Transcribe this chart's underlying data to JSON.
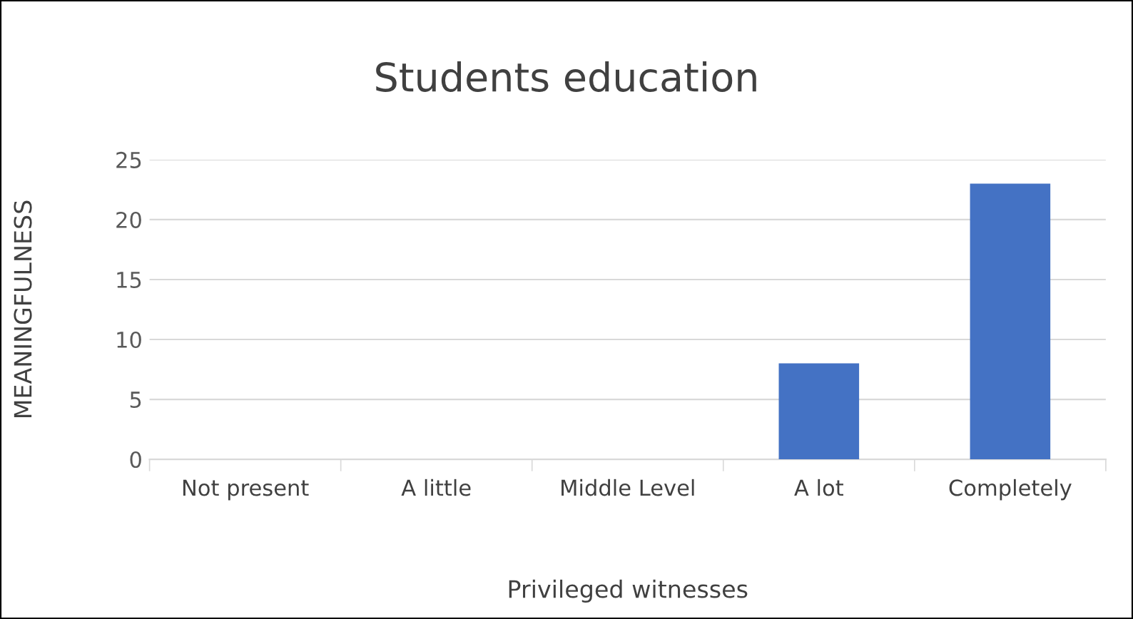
{
  "chart_data": {
    "type": "bar",
    "title": "Students education",
    "xlabel": "Privileged witnesses",
    "ylabel": "MEANINGFULNESS",
    "categories": [
      "Not present",
      "A little",
      "Middle Level",
      "A lot",
      "Completely"
    ],
    "values": [
      0,
      0,
      0,
      8,
      23
    ],
    "color": "#4472c4",
    "ylim": [
      0,
      25
    ],
    "yticks": [
      0,
      5,
      10,
      15,
      20,
      25
    ],
    "grid": "y",
    "legend": false
  }
}
